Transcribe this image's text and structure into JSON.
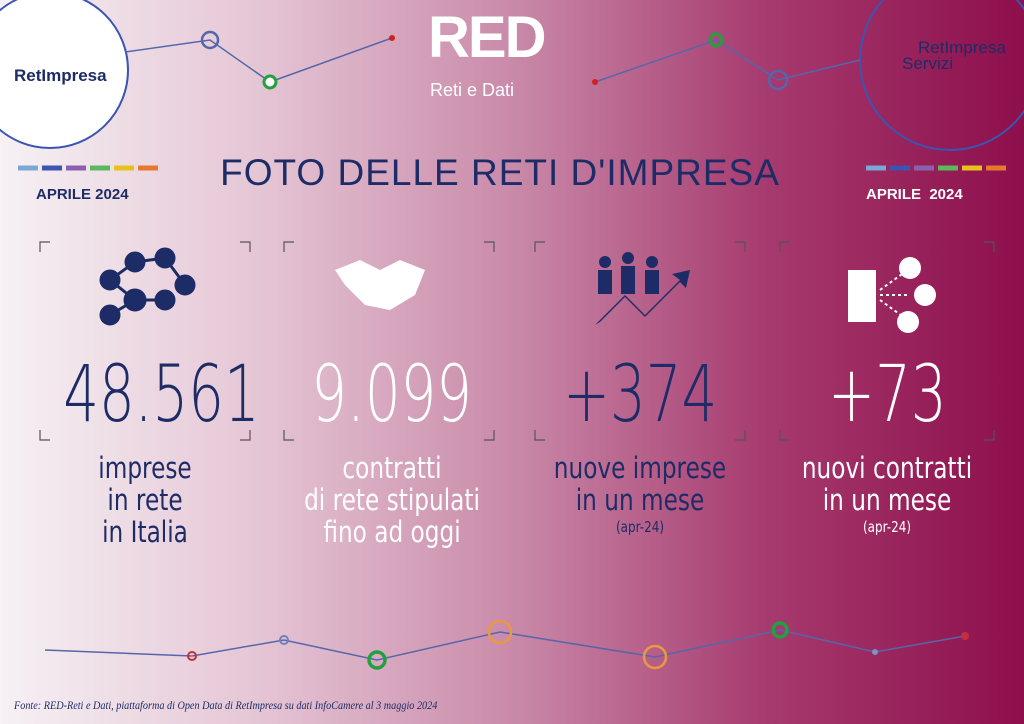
{
  "logo_left": {
    "name": "RetImpresa"
  },
  "logo_center": {
    "name": "RED",
    "subtitle": "Reti e Dati"
  },
  "logo_right": {
    "name": "RetImpresa",
    "subtitle": "Servizi"
  },
  "title": "FOTO DELLE RETI D'IMPRESA",
  "date_left": "APRILE 2024",
  "date_right": "APRILE  2024",
  "stats": [
    {
      "value": "48.561",
      "label": [
        "imprese",
        "in rete",
        "in Italia"
      ]
    },
    {
      "value": "9.099",
      "label": [
        "contratti",
        "di rete stipulati",
        "fino ad oggi"
      ]
    },
    {
      "value": "+374",
      "label": [
        "nuove imprese",
        "in un mese"
      ],
      "note": "(apr-24)"
    },
    {
      "value": "+73",
      "label": [
        "nuovi contratti",
        "in un mese"
      ],
      "note": "(apr-24)"
    }
  ],
  "footer": "Fonte: RED-Reti e Dati, piattaforma di Open Data di RetImpresa su dati InfoCamere al 3 maggio 2024"
}
